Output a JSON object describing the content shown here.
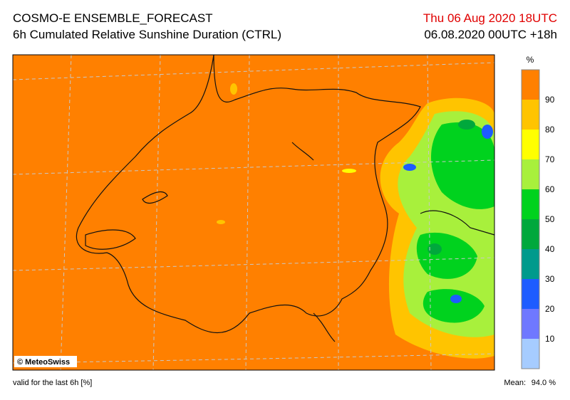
{
  "header": {
    "title": "COSMO-E ENSEMBLE_FORECAST",
    "subtitle": "6h Cumulated Relative Sunshine Duration (CTRL)",
    "valid_time": "Thu 06 Aug 2020 18UTC",
    "run": "06.08.2020 00UTC +18h"
  },
  "map": {
    "credit": "© MeteoSwiss"
  },
  "legend": {
    "unit": "%",
    "levels": [
      10,
      20,
      30,
      40,
      50,
      60,
      70,
      80,
      90
    ],
    "colors": [
      "#a6ccff",
      "#6f78ff",
      "#1e5cff",
      "#009a8c",
      "#00a83c",
      "#00d21e",
      "#a8f03c",
      "#ffff00",
      "#ffc400",
      "#ff8000"
    ]
  },
  "footer": {
    "note": "valid for the last 6h [%]",
    "mean_label": "Mean:",
    "mean_value": "94.0 %"
  }
}
